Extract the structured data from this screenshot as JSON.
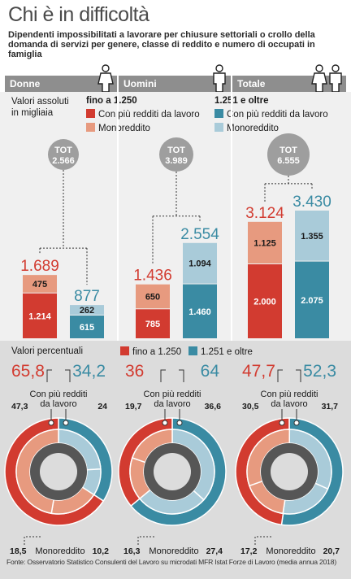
{
  "title": "Chi è in difficoltà",
  "subtitle": "Dipendenti impossibilitati a lavorare per chiusure settoriali o crollo della domanda di servizi per genere, classe di reddito e numero di occupati in famiglia",
  "columns": [
    "Donne",
    "Uomini",
    "Totale"
  ],
  "legend": {
    "abs_label": "Valori assoluti in migliaia",
    "income_low": "fino a 1.250",
    "income_high": "1.251 e oltre",
    "multi": "Con più redditi da lavoro",
    "mono": "Monoreddito",
    "pct_label": "Valori percentuali"
  },
  "colors": {
    "low_multi": "#d23b30",
    "low_mono": "#e79a7f",
    "high_multi": "#3a8ba3",
    "high_mono": "#a9cbd9",
    "tot_circle": "#9e9e9e",
    "header": "#8e8e8e",
    "donut_center": "#565656"
  },
  "tot_label": "TOT",
  "chart_data": [
    {
      "type": "bar",
      "group": "Donne",
      "total": "2.566",
      "categories": [
        "fino a 1.250",
        "1.251 e oltre"
      ],
      "totals": [
        "1.689",
        "877"
      ],
      "series": [
        {
          "name": "Con più redditi da lavoro",
          "values": [
            1214,
            615
          ],
          "labels": [
            "1.214",
            "615"
          ]
        },
        {
          "name": "Monoreddito",
          "values": [
            475,
            262
          ],
          "labels": [
            "475",
            "262"
          ]
        }
      ]
    },
    {
      "type": "bar",
      "group": "Uomini",
      "total": "3.989",
      "categories": [
        "fino a 1.250",
        "1.251 e oltre"
      ],
      "totals": [
        "1.436",
        "2.554"
      ],
      "series": [
        {
          "name": "Con più redditi da lavoro",
          "values": [
            785,
            1460
          ],
          "labels": [
            "785",
            "1.460"
          ]
        },
        {
          "name": "Monoreddito",
          "values": [
            650,
            1094
          ],
          "labels": [
            "650",
            "1.094"
          ]
        }
      ]
    },
    {
      "type": "bar",
      "group": "Totale",
      "total": "6.555",
      "categories": [
        "fino a 1.250",
        "1.251 e oltre"
      ],
      "totals": [
        "3.124",
        "3.430"
      ],
      "series": [
        {
          "name": "Con più redditi da lavoro",
          "values": [
            2000,
            2075
          ],
          "labels": [
            "2.000",
            "2.075"
          ]
        },
        {
          "name": "Monoreddito",
          "values": [
            1125,
            1355
          ],
          "labels": [
            "1.125",
            "1.355"
          ]
        }
      ]
    },
    {
      "type": "pie",
      "group": "Donne",
      "outer": [
        {
          "name": "fino a 1.250",
          "value": 65.8,
          "label": "65,8"
        },
        {
          "name": "1.251 e oltre",
          "value": 34.2,
          "label": "34,2"
        }
      ],
      "inner": [
        {
          "name": "fino a 1.250 · Con più redditi da lavoro",
          "value": 47.3,
          "label": "47,3"
        },
        {
          "name": "1.251 e oltre · Con più redditi da lavoro",
          "value": 24,
          "label": "24"
        },
        {
          "name": "1.251 e oltre · Monoreddito",
          "value": 10.2,
          "label": "10,2"
        },
        {
          "name": "fino a 1.250 · Monoreddito",
          "value": 18.5,
          "label": "18,5"
        }
      ],
      "annotations": [
        "Con più redditi da lavoro",
        "Monoreddito"
      ]
    },
    {
      "type": "pie",
      "group": "Uomini",
      "outer": [
        {
          "name": "fino a 1.250",
          "value": 36,
          "label": "36"
        },
        {
          "name": "1.251 e oltre",
          "value": 64,
          "label": "64"
        }
      ],
      "inner": [
        {
          "name": "fino a 1.250 · Con più redditi da lavoro",
          "value": 19.7,
          "label": "19,7"
        },
        {
          "name": "1.251 e oltre · Con più redditi da lavoro",
          "value": 36.6,
          "label": "36,6"
        },
        {
          "name": "1.251 e oltre · Monoreddito",
          "value": 27.4,
          "label": "27,4"
        },
        {
          "name": "fino a 1.250 · Monoreddito",
          "value": 16.3,
          "label": "16,3"
        }
      ],
      "annotations": [
        "Con più redditi da lavoro",
        "Monoreddito"
      ]
    },
    {
      "type": "pie",
      "group": "Totale",
      "outer": [
        {
          "name": "fino a 1.250",
          "value": 47.7,
          "label": "47,7"
        },
        {
          "name": "1.251 e oltre",
          "value": 52.3,
          "label": "52,3"
        }
      ],
      "inner": [
        {
          "name": "fino a 1.250 · Con più redditi da lavoro",
          "value": 30.5,
          "label": "30,5"
        },
        {
          "name": "1.251 e oltre · Con più redditi da lavoro",
          "value": 31.7,
          "label": "31,7"
        },
        {
          "name": "1.251 e oltre · Monoreddito",
          "value": 20.7,
          "label": "20,7"
        },
        {
          "name": "fino a 1.250 · Monoreddito",
          "value": 17.2,
          "label": "17,2"
        }
      ],
      "annotations": [
        "Con più redditi da lavoro",
        "Monoreddito"
      ]
    }
  ],
  "source": "Fonte: Osservatorio Statistico Consulenti del Lavoro su microdati MFR Istat Forze di Lavoro (media annua 2018)"
}
